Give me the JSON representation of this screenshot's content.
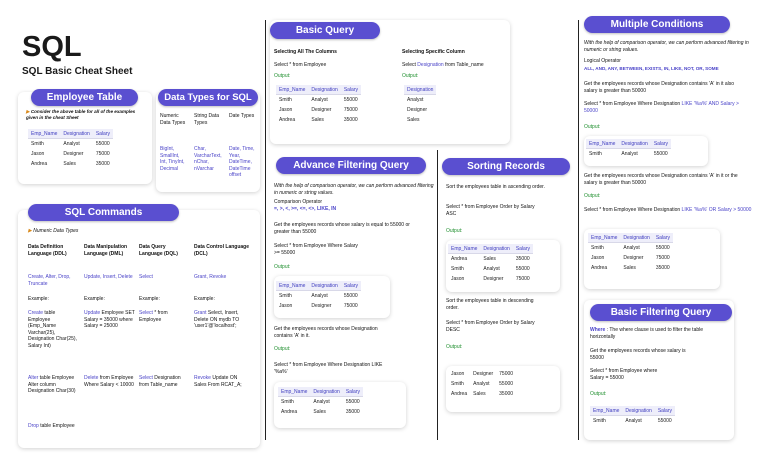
{
  "title": "SQL",
  "subtitle": "SQL Basic Cheat Sheet",
  "employee_table": {
    "header": "Employee Table",
    "note": "Consider the above table for all of the examples given in the cheat Sheet",
    "columns": [
      "Emp_Name",
      "Designation",
      "Salary"
    ],
    "rows": [
      [
        "Smith",
        "Analyst",
        "55000"
      ],
      [
        "Jason",
        "Designer",
        "75000"
      ],
      [
        "Andrea",
        "Sales",
        "35000"
      ]
    ]
  },
  "data_types": {
    "header": "Data Types for SQL",
    "cols": [
      {
        "head": "Numeric Data Types",
        "vals": "BigInt, SmallInt, Int, TinyInt, Decimal"
      },
      {
        "head": "String Data Types",
        "vals": "Char, VarcharText, nChar, nVarchar"
      },
      {
        "head": "Date Types",
        "vals": "Date, Time, Year, DateTime, DateTime offset"
      }
    ]
  },
  "sql_commands": {
    "header": "SQL Commands",
    "note": "Numeric Data Types",
    "columns": [
      {
        "head": "Data Definition Language (DDL)",
        "cmds": "Create, Alter, Drop, Truncate",
        "example_label": "Example:",
        "example1_kw": "Create",
        "example1": "table Employee (Emp_Name Varchar(25), Designation Char(25), Salary Int)",
        "example2_kw": "Alter",
        "example2": "table Employee Alter column Designation Char(30)",
        "example3_kw": "Drop",
        "example3": "table Employee"
      },
      {
        "head": "Data Manipulation Language (DML)",
        "cmds": "Update, Insert, Delete",
        "example_label": "Example:",
        "example1_kw": "Update",
        "example1": "Employee SET Salary = 35000 where Salary = 25000",
        "example2_kw": "Delete",
        "example2": "from Employee Where Salary < 10000"
      },
      {
        "head": "Data Query Language (DQL)",
        "cmds": "Select",
        "example_label": "Example:",
        "example1_kw": "Select",
        "example1": "* from Employee",
        "example2_kw": "Select",
        "example2": "Designation from Table_name"
      },
      {
        "head": "Data Control Language (DCL)",
        "cmds": "Grant, Revoke",
        "example_label": "Example:",
        "example1_kw": "Grant",
        "example1": "Select, Insert, Delete ON mydb TO 'user1'@'localhost';",
        "example2_kw": "Revoke",
        "example2": "Update ON Sales From RCAT_A;"
      }
    ]
  },
  "basic_query": {
    "header": "Basic Query",
    "left_head": "Selecting All The Columns",
    "left_query": "Select * from Employee",
    "left_output": "Output:",
    "left_columns": [
      "Emp_Name",
      "Designation",
      "Salary"
    ],
    "left_rows": [
      [
        "Smith",
        "Analyst",
        "55000"
      ],
      [
        "Jason",
        "Designer",
        "75000"
      ],
      [
        "Andrea",
        "Sales",
        "35000"
      ]
    ],
    "right_head": "Selecting Specific Column",
    "right_query_kw": "Select",
    "right_query_mid": "Designation",
    "right_query_end": "from Table_name",
    "right_output": "Output:",
    "right_columns": [
      "Designation"
    ],
    "right_rows": [
      [
        "Analyst"
      ],
      [
        "Designer"
      ],
      [
        "Sales"
      ]
    ]
  },
  "advance_filtering": {
    "header": "Advance Filtering Query",
    "intro": "With the help of comparison operator, we can perform advanced filtering in numeric or string values.",
    "operators_label": "Comparison Operator",
    "operators": "=, >, <, >=, <=, <>, LIKE, IN",
    "ex1_desc": "Get the employees records whose salary is equal to 55000 or greater than 55000",
    "ex1_query": "Select * from Employee Where Salary >= 55000",
    "ex1_output": "Output:",
    "ex1_columns": [
      "Emp_Name",
      "Designation",
      "Salary"
    ],
    "ex1_rows": [
      [
        "Smith",
        "Analyst",
        "55000"
      ],
      [
        "Jason",
        "Designer",
        "75000"
      ]
    ],
    "ex2_desc": "Get the employees records whose Designation contains 'A' in it.",
    "ex2_query": "Select * from Employee Where Designation LIKE '%a%'",
    "ex2_output": "Output:",
    "ex2_columns": [
      "Emp_Name",
      "Designation",
      "Salary"
    ],
    "ex2_rows": [
      [
        "Smith",
        "Analyst",
        "55000"
      ],
      [
        "Andrea",
        "Sales",
        "35000"
      ]
    ]
  },
  "sorting": {
    "header": "Sorting Records",
    "asc_desc": "Sort the employees table in ascending order.",
    "asc_query": "Select * from Employee Order by Salary ASC",
    "asc_output": "Output:",
    "columns": [
      "Emp_Name",
      "Designation",
      "Salary"
    ],
    "asc_rows": [
      [
        "Andrea",
        "Sales",
        "35000"
      ],
      [
        "Smith",
        "Analyst",
        "55000"
      ],
      [
        "Jason",
        "Designer",
        "75000"
      ]
    ],
    "desc_desc": "Sort the employees table in descending order.",
    "desc_query": "Select * from Employee Order by Salary DESC",
    "desc_output": "Output:",
    "desc_rows": [
      [
        "Jason",
        "Designer",
        "75000"
      ],
      [
        "Smith",
        "Analyst",
        "55000"
      ],
      [
        "Andrea",
        "Sales",
        "35000"
      ]
    ]
  },
  "multiple_conditions": {
    "header": "Multiple Conditions",
    "intro": "With the help of comparison operator, we can perform advanced filtering in numeric or string values.",
    "logical_label": "Logical Operator",
    "logical_ops": "ALL, AND, ANY, BETWEEN, EXISTS, IN, LIKE, NOT, OR, SOME",
    "ex1_desc": "Get the employees records whose Designation contains 'A' in it also salary is greater than 50000",
    "ex1_query_a": "Select * from Employee Where Designation",
    "ex1_query_b": "LIKE '%a%' AND Salary > 50000",
    "ex1_output": "Output:",
    "ex1_columns": [
      "Emp_Name",
      "Designation",
      "Salary"
    ],
    "ex1_rows": [
      [
        "Smith",
        "Analyst",
        "55000"
      ]
    ],
    "ex2_desc": "Get the employees records whose Designation contains 'A' in it or the salary is greater than 50000",
    "ex2_output": "Output:",
    "ex2_query_a": "Select * from Employee Where Designation",
    "ex2_query_b": "LIKE '%a%' OR Salary > 50000",
    "ex2_columns": [
      "Emp_Name",
      "Designation",
      "Salary"
    ],
    "ex2_rows": [
      [
        "Smith",
        "Analyst",
        "55000"
      ],
      [
        "Jason",
        "Designer",
        "75000"
      ],
      [
        "Andrea",
        "Sales",
        "35000"
      ]
    ]
  },
  "basic_filtering": {
    "header": "Basic Filtering Query",
    "where_kw": "Where",
    "where_desc": ": The where clause is used to filter the table horizontally",
    "ex_desc": "Get the employees records whose salary is 55000",
    "ex_query": "Select * from Employee where Salary = 55000",
    "output": "Output:",
    "columns": [
      "Emp_Name",
      "Designation",
      "Salary"
    ],
    "rows": [
      [
        "Smith",
        "Analyst",
        "55000"
      ]
    ]
  }
}
